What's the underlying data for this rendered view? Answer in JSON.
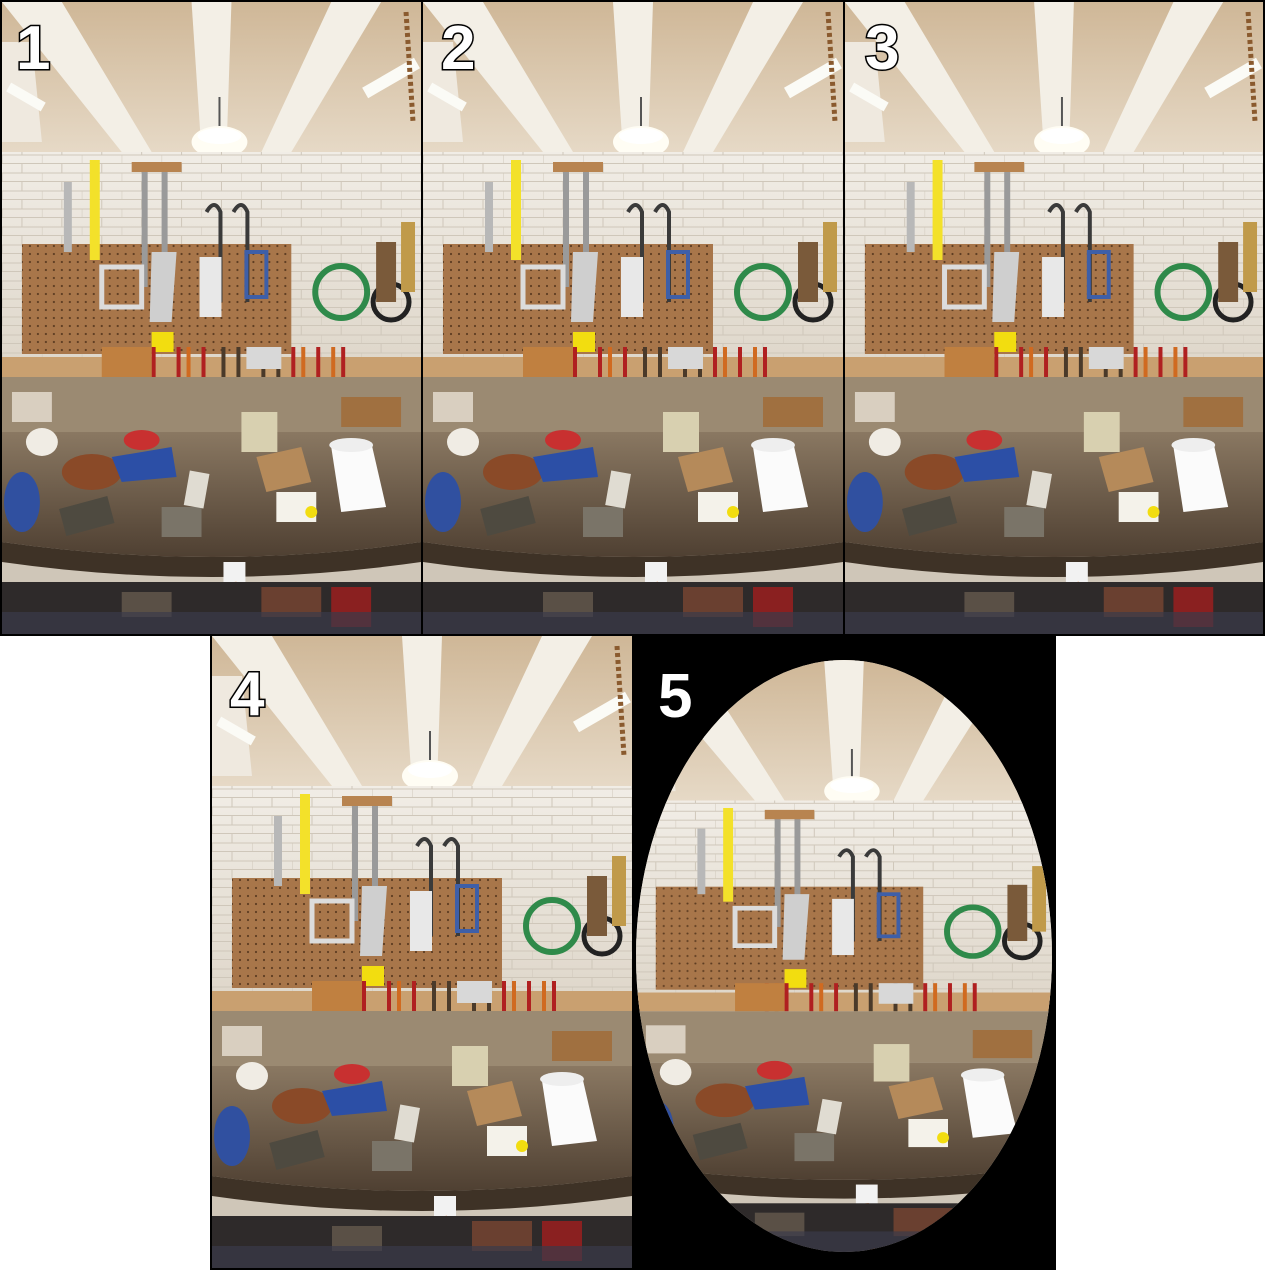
{
  "panels": [
    {
      "label": "1"
    },
    {
      "label": "2"
    },
    {
      "label": "3"
    },
    {
      "label": "4"
    },
    {
      "label": "5"
    }
  ],
  "colors": {
    "border": "#000000",
    "ceiling": "#d8c2a6",
    "wall": "#e9e4dc",
    "pegboard": "#a8764a",
    "bench": "#6e5a44",
    "floor": "#3a3a4a"
  }
}
